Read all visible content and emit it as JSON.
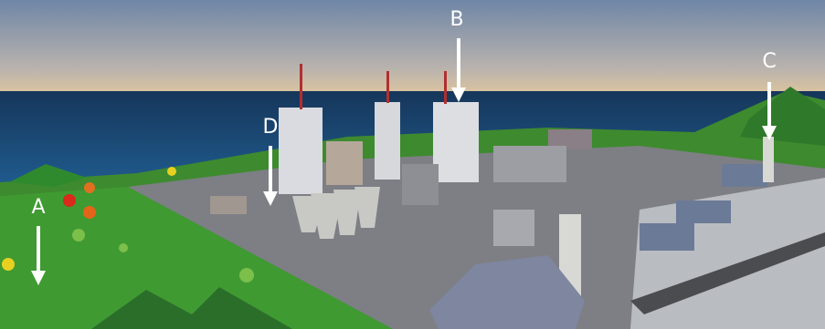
{
  "annotations": [
    {
      "label": "A"
    },
    {
      "label": "B"
    },
    {
      "label": "C"
    },
    {
      "label": "D"
    }
  ]
}
